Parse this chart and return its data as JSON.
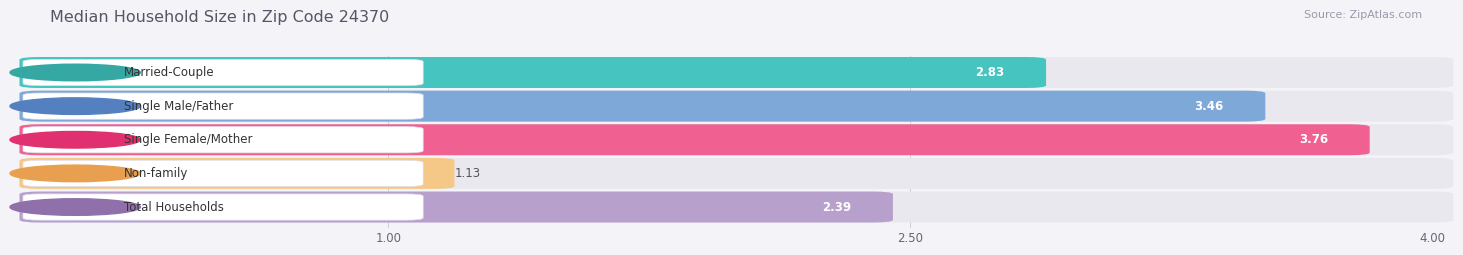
{
  "title": "Median Household Size in Zip Code 24370",
  "source": "Source: ZipAtlas.com",
  "categories": [
    "Married-Couple",
    "Single Male/Father",
    "Single Female/Mother",
    "Non-family",
    "Total Households"
  ],
  "values": [
    2.83,
    3.46,
    3.76,
    1.13,
    2.39
  ],
  "bar_colors": [
    "#45c4c0",
    "#7da8d8",
    "#f06090",
    "#f5c888",
    "#b8a0cc"
  ],
  "dot_colors": [
    "#35a8a4",
    "#5580c0",
    "#e03070",
    "#e8a050",
    "#9070aa"
  ],
  "xlim_data": [
    0,
    4.0
  ],
  "xstart": 0,
  "xticks": [
    1.0,
    2.5,
    4.0
  ],
  "xticklabels": [
    "1.00",
    "2.50",
    "4.00"
  ],
  "background_color": "#f4f4f8",
  "bar_bg_color": "#e8e8ee",
  "title_fontsize": 11.5,
  "label_fontsize": 8.5,
  "value_fontsize": 8.5,
  "source_fontsize": 8
}
